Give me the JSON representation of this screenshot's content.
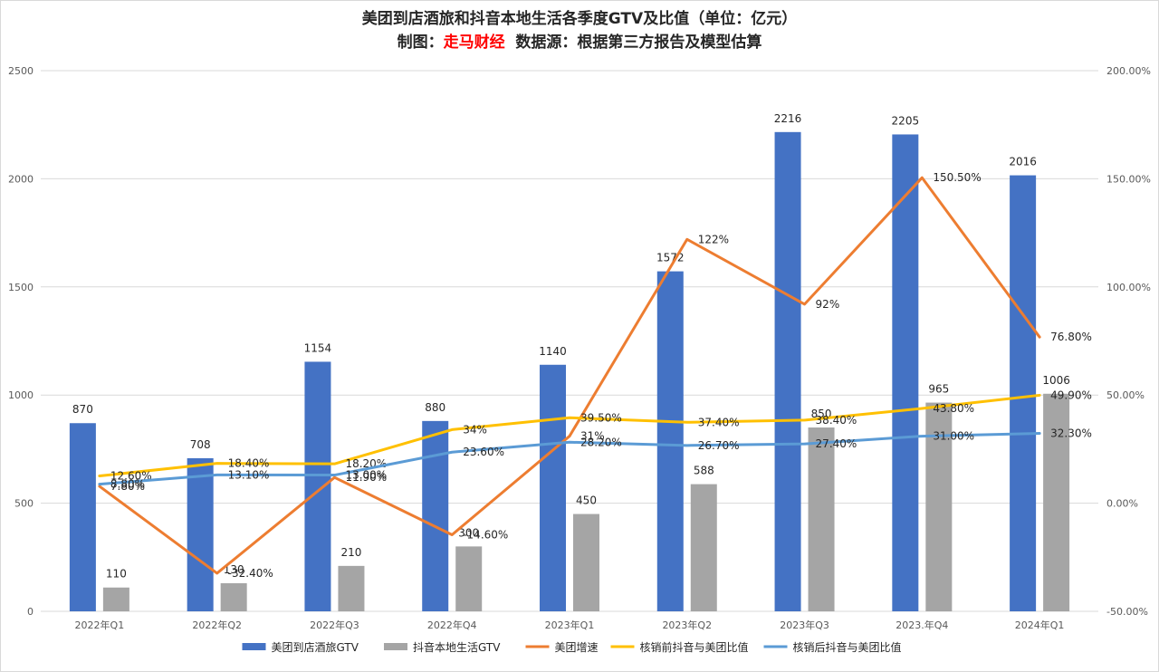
{
  "title": {
    "line1": "美团到店酒旅和抖音本地生活各季度GTV及比值（单位：亿元）",
    "line2_prefix": "制图：",
    "line2_brand": "走马财经",
    "line2_suffix": "  数据源：根据第三方报告及模型估算"
  },
  "chart_data": {
    "type": "bar",
    "categories": [
      "2022年Q1",
      "2022年Q2",
      "2022年Q3",
      "2022年Q4",
      "2023年Q1",
      "2023年Q2",
      "2023年Q3",
      "2023.年Q4",
      "2024年Q1"
    ],
    "y_left": {
      "min": 0,
      "max": 2500,
      "step": 500,
      "ticks": [
        "0",
        "500",
        "1000",
        "1500",
        "2000",
        "2500"
      ]
    },
    "y_right": {
      "min": -50,
      "max": 200,
      "step": 50,
      "ticks": [
        "-50.00%",
        "0.00%",
        "50.00%",
        "100.00%",
        "150.00%",
        "200.00%"
      ]
    },
    "grid": true,
    "legend_position": "bottom",
    "bar_series": [
      {
        "name": "美团到店酒旅GTV",
        "color": "#4472C4",
        "values": [
          870,
          708,
          1154,
          880,
          1140,
          1572,
          2216,
          2205,
          2016
        ],
        "labels": [
          "870",
          "708",
          "1154",
          "880",
          "1140",
          "1572",
          "2216",
          "2205",
          "2016"
        ]
      },
      {
        "name": "抖音本地生活GTV",
        "color": "#A5A5A5",
        "values": [
          110,
          130,
          210,
          300,
          450,
          588,
          850,
          965,
          1006
        ],
        "labels": [
          "110",
          "130",
          "210",
          "300",
          "450",
          "588",
          "850",
          "965",
          "1006"
        ]
      }
    ],
    "line_series": [
      {
        "name": "美团增速",
        "color": "#ED7D31",
        "values": [
          7.8,
          -32.4,
          11.9,
          -14.6,
          31,
          122,
          92,
          150.5,
          76.8
        ],
        "labels": [
          "7.80%",
          "-32.40%",
          "11.90%",
          "-14.60%",
          "31%",
          "122%",
          "92%",
          "150.50%",
          "76.80%"
        ]
      },
      {
        "name": "核销前抖音与美团比值",
        "color": "#FFC000",
        "values": [
          12.6,
          18.4,
          18.2,
          34,
          39.5,
          37.4,
          38.4,
          43.8,
          49.9
        ],
        "labels": [
          "12.60%",
          "18.40%",
          "18.20%",
          "34%",
          "39.50%",
          "37.40%",
          "38.40%",
          "43.80%",
          "49.90%"
        ]
      },
      {
        "name": "核销后抖音与美团比值",
        "color": "#5B9BD5",
        "values": [
          8.8,
          13.1,
          13,
          23.6,
          28.2,
          26.7,
          27.4,
          31,
          32.3
        ],
        "labels": [
          "8.80%",
          "13.10%",
          "13.00%",
          "23.60%",
          "28.20%",
          "26.70%",
          "27.40%",
          "31.00%",
          "32.30%"
        ]
      }
    ]
  }
}
